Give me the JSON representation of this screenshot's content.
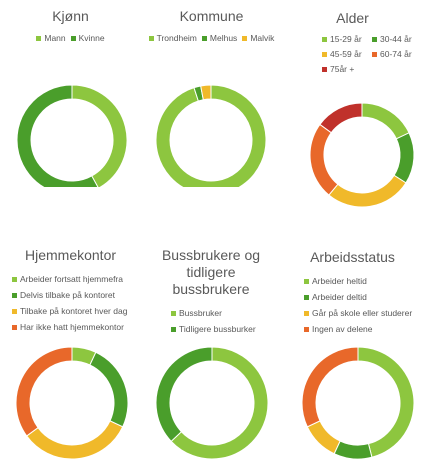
{
  "chart_data": [
    {
      "type": "donut",
      "title": "Kjønn",
      "categories": [
        "Mann",
        "Kvinne"
      ],
      "values": [
        42,
        58
      ],
      "colors": [
        "#8dc63f",
        "#4a9e2b"
      ]
    },
    {
      "type": "donut",
      "title": "Kommune",
      "categories": [
        "Trondheim",
        "Melhus",
        "Malvik"
      ],
      "values": [
        95,
        2,
        3
      ],
      "colors": [
        "#8dc63f",
        "#4a9e2b",
        "#f0b92a"
      ]
    },
    {
      "type": "donut",
      "title": "Alder",
      "categories": [
        "15-29 år",
        "30-44 år",
        "45-59 år",
        "60-74 år",
        "75år +"
      ],
      "values": [
        18,
        16,
        27,
        24,
        15
      ],
      "colors": [
        "#8dc63f",
        "#4a9e2b",
        "#f0b92a",
        "#e8682a",
        "#c0312b"
      ]
    },
    {
      "type": "donut",
      "title": "Hjemmekontor",
      "categories": [
        "Arbeider fortsatt hjemmefra",
        "Delvis tilbake på kontoret",
        "Tilbake på kontoret hver dag",
        "Har ikke hatt hjemmekontor"
      ],
      "values": [
        7,
        25,
        33,
        35
      ],
      "colors": [
        "#8dc63f",
        "#4a9e2b",
        "#f0b92a",
        "#e8682a"
      ]
    },
    {
      "type": "donut",
      "title": "Bussbrukere og tidligere bussbrukere",
      "categories": [
        "Bussbruker",
        "Tidligere bussburker"
      ],
      "values": [
        63,
        37
      ],
      "colors": [
        "#8dc63f",
        "#4a9e2b"
      ]
    },
    {
      "type": "donut",
      "title": "Arbeidsstatus",
      "categories": [
        "Arbeider heltid",
        "Arbeider deltid",
        "Går på skole eller studerer",
        "Ingen av delene"
      ],
      "values": [
        46,
        11,
        11,
        32
      ],
      "colors": [
        "#8dc63f",
        "#4a9e2b",
        "#f0b92a",
        "#e8682a"
      ]
    }
  ]
}
